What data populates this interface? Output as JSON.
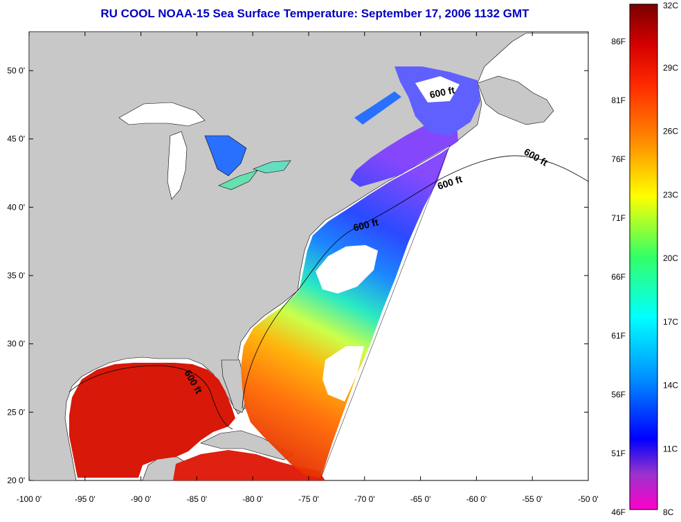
{
  "title": "RU COOL  NOAA-15  Sea Surface Temperature:  September 17, 2006 1132 GMT",
  "lat_ticks": [
    "50 0'",
    "45 0'",
    "40 0'",
    "35 0'",
    "30 0'",
    "25 0'",
    "20 0'"
  ],
  "lon_ticks": [
    "-100 0'",
    "-95 0'",
    "-90 0'",
    "-85 0'",
    "-80 0'",
    "-75 0'",
    "-70 0'",
    "-65 0'",
    "-60 0'",
    "-55 0'",
    "-50 0'"
  ],
  "contour_label": "600 ft",
  "colorbar": {
    "celsius": [
      "32C",
      "29C",
      "26C",
      "23C",
      "20C",
      "17C",
      "14C",
      "11C",
      "8C"
    ],
    "fahrenheit": [
      "86F",
      "81F",
      "76F",
      "71F",
      "66F",
      "61F",
      "56F",
      "51F",
      "46F"
    ]
  },
  "colors": {
    "land": "#c8c8c8",
    "no_data": "#ffffff",
    "title": "#0000c0"
  }
}
